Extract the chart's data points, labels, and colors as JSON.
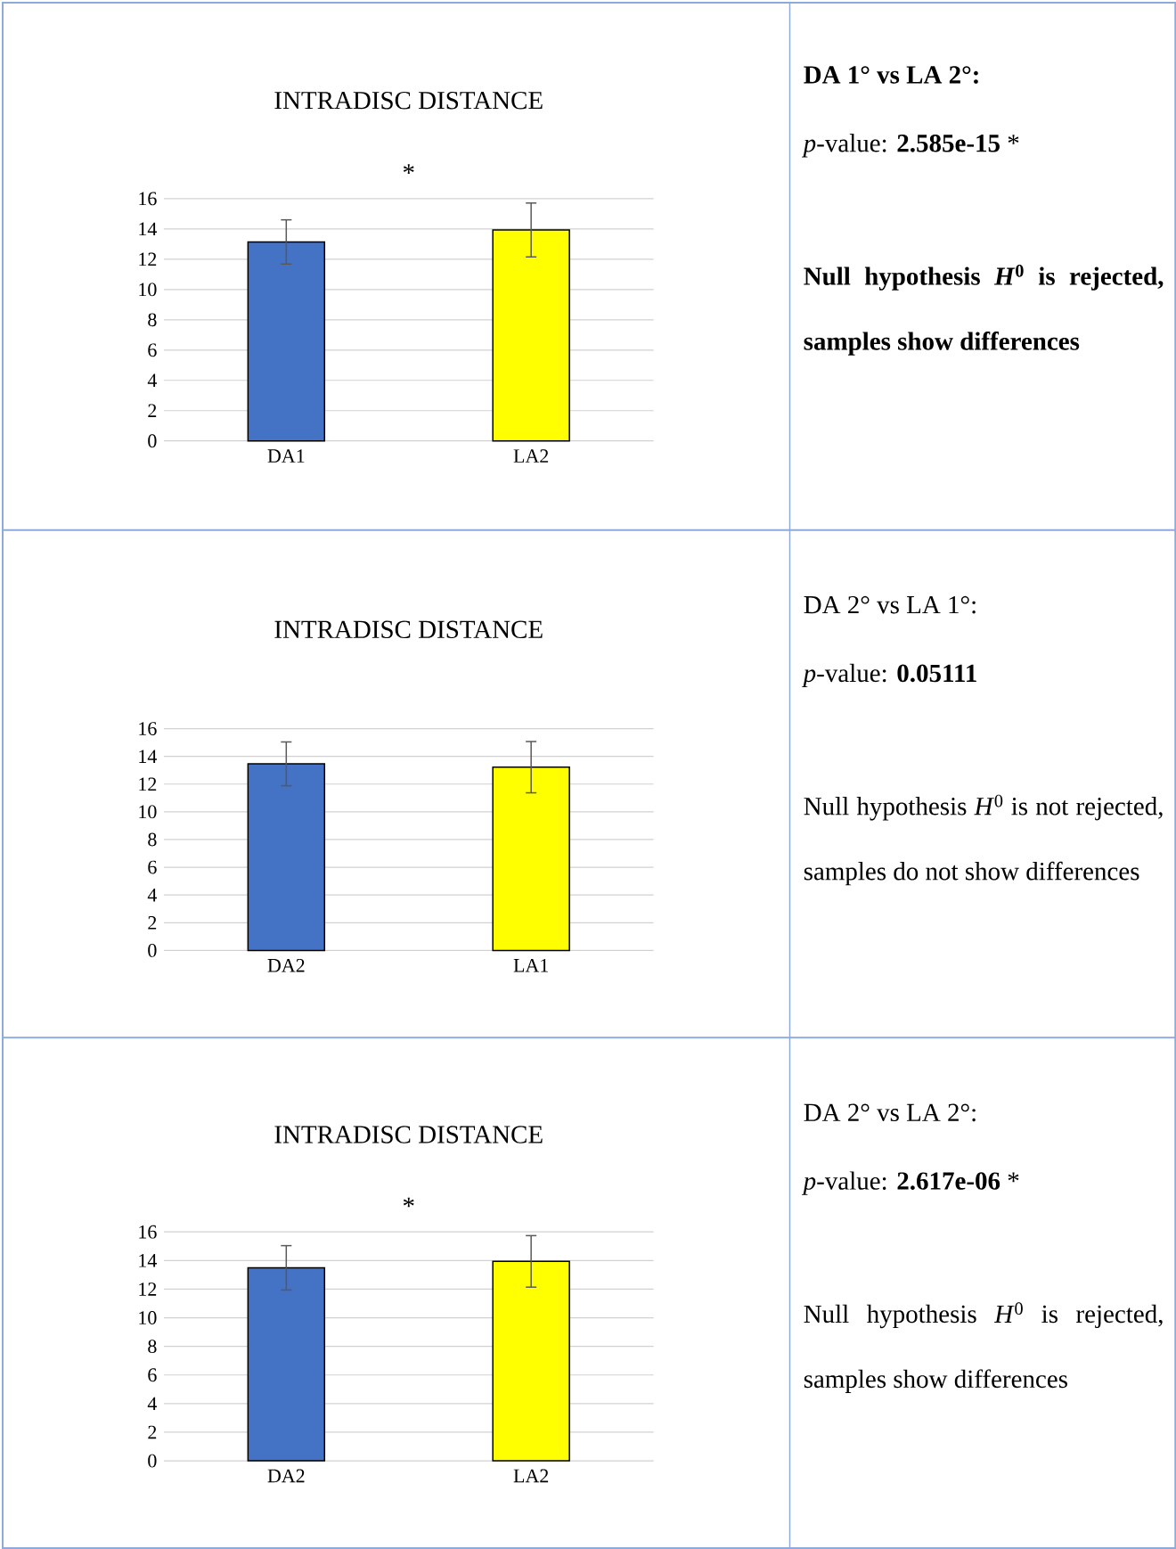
{
  "chart_data": [
    {
      "type": "bar",
      "title": "INTRADISC DISTANCE",
      "annotations": [
        "*"
      ],
      "categories": [
        "DA1",
        "LA2"
      ],
      "values": [
        13.14,
        13.93
      ],
      "colors": [
        "#4472c4",
        "#ffff00"
      ],
      "errors": [
        1.46,
        1.78
      ],
      "ylim": [
        0,
        16
      ],
      "yticks": [
        0,
        2,
        4,
        6,
        8,
        10,
        12,
        14,
        16
      ],
      "grid": "y"
    },
    {
      "type": "other",
      "annotations": [
        "**DA 1° vs LA 2°:**",
        "*p*-value: **2.585e-15** *",
        "**Null hypothesis *H*$^{0}$ is rejected, samples show differences**"
      ]
    },
    {
      "type": "bar",
      "title": "INTRADISC DISTANCE",
      "categories": [
        "DA2",
        "LA1"
      ],
      "values": [
        13.46,
        13.22
      ],
      "colors": [
        "#4472c4",
        "#ffff00"
      ],
      "errors": [
        1.58,
        1.85
      ],
      "ylim": [
        0,
        16
      ],
      "yticks": [
        0,
        2,
        4,
        6,
        8,
        10,
        12,
        14,
        16
      ],
      "grid": "y"
    },
    {
      "type": "other",
      "annotations": [
        "DA 2° vs LA 1°:",
        "*p*-value: **0.05111**",
        "Null hypothesis *H*$^{0}$ is not rejected, samples do not show differences"
      ]
    },
    {
      "type": "bar",
      "title": "INTRADISC DISTANCE",
      "annotations": [
        "*"
      ],
      "categories": [
        "DA2",
        "LA2"
      ],
      "values": [
        13.49,
        13.94
      ],
      "colors": [
        "#4472c4",
        "#ffff00"
      ],
      "errors": [
        1.55,
        1.8
      ],
      "ylim": [
        0,
        16
      ],
      "yticks": [
        0,
        2,
        4,
        6,
        8,
        10,
        12,
        14,
        16
      ],
      "grid": "y"
    },
    {
      "type": "other",
      "annotations": [
        "DA 2° vs LA 2°:",
        "*p*-value: **2.617e-06** *",
        "Null hypothesis *H*$^{0}$ is rejected, samples show differences"
      ]
    }
  ]
}
